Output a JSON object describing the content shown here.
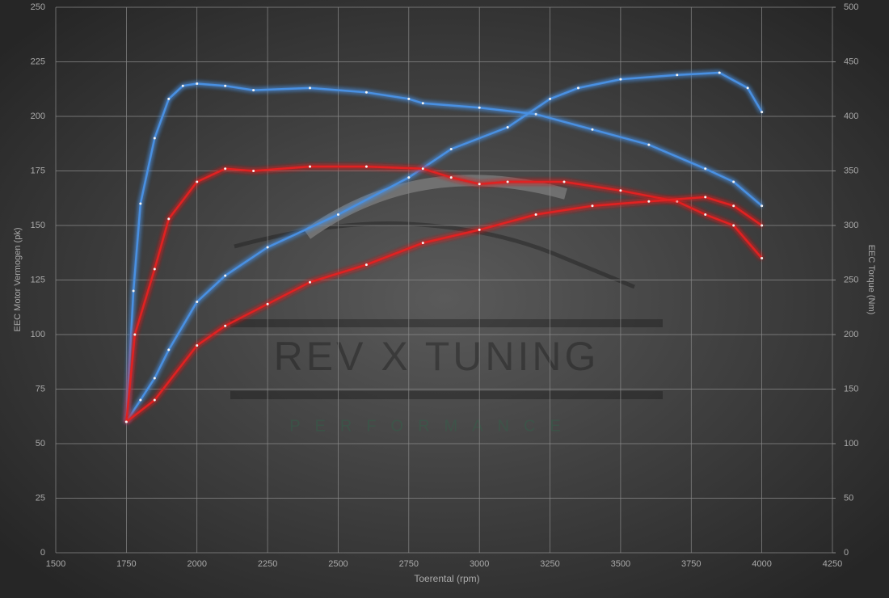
{
  "chart_data": {
    "type": "line",
    "x_label": "Toerental (rpm)",
    "y_label": "EEC Motor Vermogen (pk)",
    "y2_label": "EEC Torque (Nm)",
    "watermark": {
      "text": "REV X TUNING",
      "subtext": "PERFORMANCE"
    },
    "xlim": [
      1500,
      4250
    ],
    "xticks": [
      1500,
      1750,
      2000,
      2250,
      2500,
      2750,
      3000,
      3250,
      3500,
      3750,
      4000,
      4250
    ],
    "ylim": [
      0,
      250
    ],
    "yticks": [
      0,
      25,
      50,
      75,
      100,
      125,
      150,
      175,
      200,
      225,
      250
    ],
    "y2lim": [
      0,
      500
    ],
    "y2ticks": [
      0,
      50,
      100,
      150,
      200,
      250,
      300,
      350,
      400,
      450,
      500
    ],
    "grid": true,
    "series": [
      {
        "color": "#4a90e2",
        "axis": "y2",
        "x": [
          1750,
          1775,
          1800,
          1850,
          1900,
          1950,
          2000,
          2100,
          2200,
          2400,
          2600,
          2750,
          2800,
          3000,
          3200,
          3400,
          3600,
          3800,
          3900,
          4000
        ],
        "values": [
          120,
          240,
          320,
          380,
          416,
          428,
          430,
          428,
          424,
          426,
          422,
          416,
          412,
          408,
          402,
          388,
          374,
          352,
          340,
          318
        ]
      },
      {
        "color": "#4a90e2",
        "axis": "y",
        "x": [
          1750,
          1800,
          1850,
          1900,
          2000,
          2100,
          2250,
          2500,
          2750,
          2900,
          3100,
          3250,
          3350,
          3500,
          3700,
          3850,
          3950,
          4000
        ],
        "values": [
          60,
          70,
          80,
          93,
          115,
          127,
          140,
          155,
          172,
          185,
          195,
          208,
          213,
          217,
          219,
          220,
          213,
          202
        ]
      },
      {
        "color": "#e02020",
        "axis": "y2",
        "x": [
          1750,
          1780,
          1850,
          1900,
          2000,
          2100,
          2200,
          2400,
          2600,
          2800,
          2900,
          3000,
          3100,
          3300,
          3500,
          3700,
          3800,
          3900,
          4000
        ],
        "values": [
          120,
          200,
          260,
          306,
          340,
          352,
          350,
          354,
          354,
          352,
          344,
          338,
          340,
          340,
          332,
          322,
          310,
          300,
          270
        ]
      },
      {
        "color": "#e02020",
        "axis": "y",
        "x": [
          1750,
          1850,
          2000,
          2100,
          2250,
          2400,
          2600,
          2800,
          3000,
          3200,
          3400,
          3600,
          3800,
          3900,
          4000
        ],
        "values": [
          60,
          70,
          95,
          104,
          114,
          124,
          132,
          142,
          148,
          155,
          159,
          161,
          163,
          159,
          150
        ]
      }
    ]
  }
}
